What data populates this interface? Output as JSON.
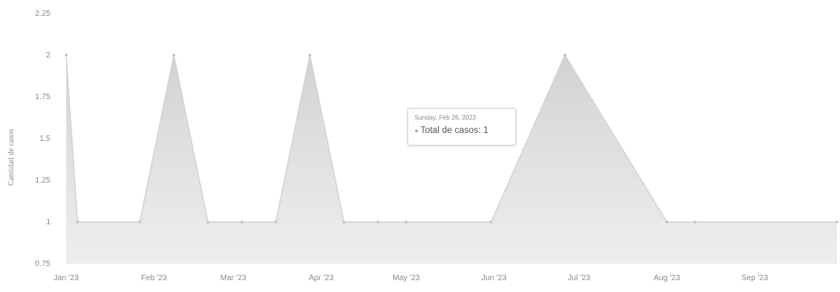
{
  "chart_data": {
    "type": "area",
    "title": "",
    "xlabel": "",
    "ylabel": "Cantidad de casos",
    "ylim": [
      0.75,
      2.25
    ],
    "yticks": [
      0.75,
      1,
      1.25,
      1.5,
      1.75,
      2,
      2.25
    ],
    "ytick_labels": [
      "0.75",
      "1",
      "1.25",
      "1.5",
      "1.75",
      "2",
      "2.25"
    ],
    "xlim": [
      "2023-01-01",
      "2023-09-30"
    ],
    "xticks": [
      "2023-01-01",
      "2023-02-01",
      "2023-03-01",
      "2023-04-01",
      "2023-05-01",
      "2023-06-01",
      "2023-07-01",
      "2023-08-01",
      "2023-09-01"
    ],
    "xtick_labels": [
      "Jan '23",
      "Feb '23",
      "Mar '23",
      "Apr '23",
      "May '23",
      "Jun '23",
      "Jul '23",
      "Aug '23",
      "Sep '23"
    ],
    "grid": false,
    "series": [
      {
        "name": "Total de casos",
        "color": "#d4d4d4",
        "x": [
          "2023-01-01",
          "2023-01-05",
          "2023-01-27",
          "2023-02-08",
          "2023-02-20",
          "2023-03-04",
          "2023-03-16",
          "2023-03-28",
          "2023-04-09",
          "2023-04-21",
          "2023-05-01",
          "2023-05-31",
          "2023-06-26",
          "2023-08-01",
          "2023-08-11",
          "2023-09-30"
        ],
        "y": [
          2,
          1,
          1,
          2,
          1,
          1,
          1,
          2,
          1,
          1,
          1,
          1,
          2,
          1,
          1,
          1
        ]
      }
    ],
    "tooltip": {
      "header": "Sunday, Feb 26, 2023",
      "series_label": "Total de casos",
      "value_text": "1"
    }
  }
}
